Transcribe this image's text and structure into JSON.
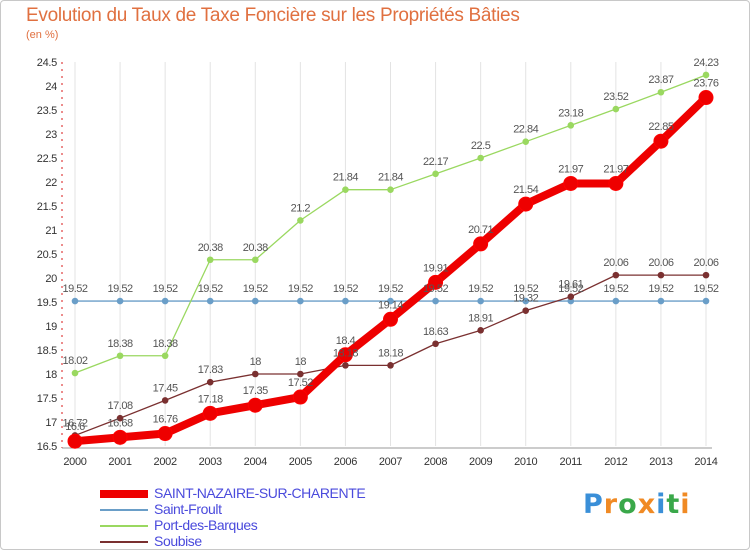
{
  "title": "Evolution du Taux de Taxe Foncière sur les Propriétés Bâties",
  "unit": "(en %)",
  "brand": {
    "letters": [
      "P",
      "r",
      "o",
      "x",
      "i",
      "t",
      "i"
    ],
    "colors": [
      "#3a8fd8",
      "#f08a24",
      "#3aa84a",
      "#f08a24",
      "#3a8fd8",
      "#3aa84a",
      "#f08a24"
    ]
  },
  "chart_data": {
    "type": "line",
    "title": "Evolution du Taux de Taxe Foncière sur les Propriétés Bâties",
    "ylabel": "(en %)",
    "xlabel": "",
    "x": [
      2000,
      2001,
      2002,
      2003,
      2004,
      2005,
      2006,
      2007,
      2008,
      2009,
      2010,
      2011,
      2012,
      2013,
      2014
    ],
    "ylim": [
      16.5,
      24.5
    ],
    "yticks": [
      16.5,
      17,
      17.5,
      18,
      18.5,
      19,
      19.5,
      20,
      20.5,
      21,
      21.5,
      22,
      22.5,
      23,
      23.5,
      24,
      24.5
    ],
    "grid": "vertical",
    "legend_position": "bottom-left",
    "series": [
      {
        "name": "SAINT-NAZAIRE-SUR-CHARENTE",
        "color": "#ee0000",
        "values": [
          16.6,
          16.68,
          16.76,
          17.18,
          17.35,
          17.52,
          18.4,
          19.14,
          19.91,
          20.71,
          21.54,
          21.97,
          21.97,
          22.85,
          23.76
        ],
        "labels": [
          "16.6",
          "16.68",
          "16.76",
          "17.18",
          "17.35",
          "17.52",
          "18.4",
          "19.14",
          "19.91",
          "20.71",
          "21.54",
          "21.97",
          "21.97",
          "22.85",
          "23.76"
        ]
      },
      {
        "name": "Saint-Froult",
        "color": "#6a9ec8",
        "values": [
          19.52,
          19.52,
          19.52,
          19.52,
          19.52,
          19.52,
          19.52,
          19.52,
          19.52,
          19.52,
          19.52,
          19.52,
          19.52,
          19.52,
          19.52
        ],
        "labels": [
          "19.52",
          "19.52",
          "19.52",
          "19.52",
          "19.52",
          "19.52",
          "19.52",
          "19.52",
          "19.52",
          "19.52",
          "19.52",
          "19.52",
          "19.52",
          "19.52",
          "19.52"
        ]
      },
      {
        "name": "Port-des-Barques",
        "color": "#9ad860",
        "values": [
          18.02,
          18.38,
          18.38,
          20.38,
          20.38,
          21.2,
          21.84,
          21.84,
          22.17,
          22.5,
          22.84,
          23.18,
          23.52,
          23.87,
          24.23
        ],
        "labels": [
          "18.02",
          "18.38",
          "18.38",
          "20.38",
          "20.38",
          "21.2",
          "21.84",
          "21.84",
          "22.17",
          "22.5",
          "22.84",
          "23.18",
          "23.52",
          "23.87",
          "24.23"
        ]
      },
      {
        "name": "Soubise",
        "color": "#7a3030",
        "values": [
          16.72,
          17.08,
          17.45,
          17.83,
          18,
          18,
          18.18,
          18.18,
          18.63,
          18.91,
          19.32,
          19.61,
          20.06,
          20.06,
          20.06
        ],
        "labels": [
          "16.72",
          "17.08",
          "17.45",
          "17.83",
          "18",
          "18",
          "18.18",
          "18.18",
          "18.63",
          "18.91",
          "19.32",
          "19.61",
          "20.06",
          "20.06",
          "20.06"
        ]
      }
    ]
  }
}
